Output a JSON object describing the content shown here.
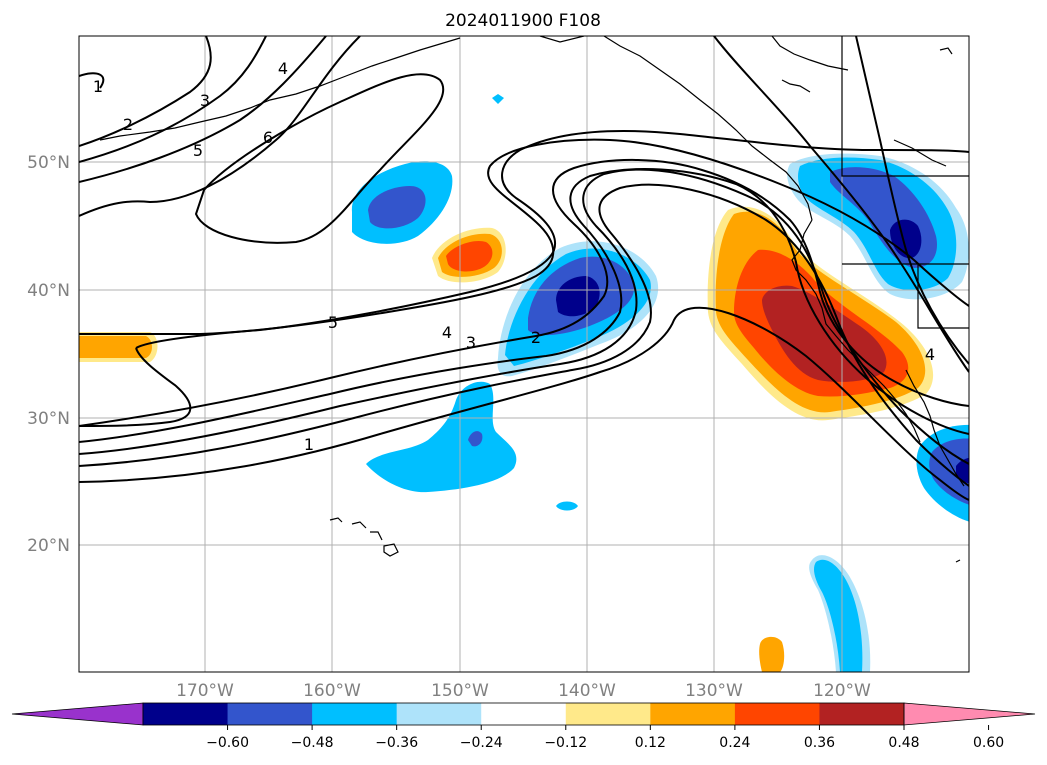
{
  "title": "2024011900 F108",
  "map": {
    "lat_labels": [
      "20°N",
      "30°N",
      "40°N",
      "50°N"
    ],
    "lon_labels": [
      "170°W",
      "160°W",
      "150°W",
      "140°W",
      "130°W",
      "120°W"
    ],
    "gridlines": true,
    "land_outline_color": "#000000"
  },
  "contour_labels": [
    "1",
    "2",
    "3",
    "4",
    "5",
    "6",
    "1",
    "2",
    "3",
    "4",
    "5",
    "4"
  ],
  "colorbar": {
    "ticks": [
      "−0.60",
      "−0.48",
      "−0.36",
      "−0.24",
      "−0.12",
      "0.12",
      "0.24",
      "0.36",
      "0.48",
      "0.60"
    ],
    "colors": [
      "#9932CC",
      "#00008B",
      "#3355CC",
      "#00BFFF",
      "#AEE3FA",
      "#FFFFFF",
      "#FFE98A",
      "#FFA500",
      "#FF4500",
      "#B22222",
      "#FF8BB0"
    ]
  }
}
